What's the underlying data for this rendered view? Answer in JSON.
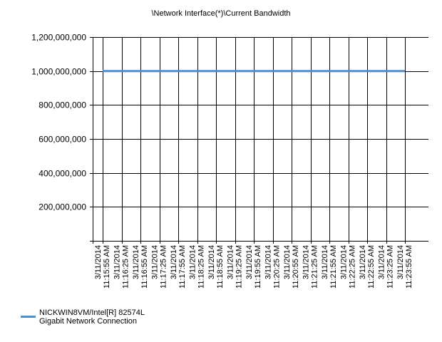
{
  "chart_data": {
    "type": "line",
    "title": "\\Network Interface(*)\\Current Bandwidth",
    "xlabel": "",
    "ylabel": "",
    "ylim": [
      0,
      1200000000
    ],
    "y_ticks": [
      "1,200,000,000",
      "1,000,000,000",
      "800,000,000",
      "600,000,000",
      "400,000,000",
      "200,000,000"
    ],
    "y_tick_values": [
      1200000000,
      1000000000,
      800000000,
      600000000,
      400000000,
      200000000
    ],
    "grid": true,
    "legend_position": "bottom-left",
    "categories": [
      "3/11/2014 11:15:55 AM",
      "3/11/2014 11:16:25 AM",
      "3/11/2014 11:16:55 AM",
      "3/11/2014 11:17:25 AM",
      "3/11/2014 11:17:55 AM",
      "3/11/2014 11:18:25 AM",
      "3/11/2014 11:18:55 AM",
      "3/11/2014 11:19:25 AM",
      "3/11/2014 11:19:55 AM",
      "3/11/2014 11:20:25 AM",
      "3/11/2014 11:20:55 AM",
      "3/11/2014 11:21:25 AM",
      "3/11/2014 11:21:55 AM",
      "3/11/2014 11:22:25 AM",
      "3/11/2014 11:22:55 AM",
      "3/11/2014 11:23:25 AM",
      "3/11/2014 11:23:55 AM"
    ],
    "series": [
      {
        "name": "NICKWIN8VM/Intel[R] 82574L\nGigabit Network Connection",
        "color": "#4a90d9",
        "values": [
          1000000000,
          1000000000,
          1000000000,
          1000000000,
          1000000000,
          1000000000,
          1000000000,
          1000000000,
          1000000000,
          1000000000,
          1000000000,
          1000000000,
          1000000000,
          1000000000,
          1000000000,
          1000000000,
          1000000000
        ]
      }
    ]
  }
}
